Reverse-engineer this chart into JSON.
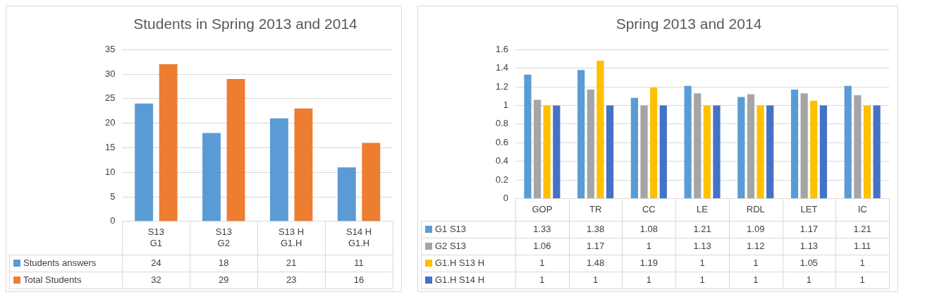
{
  "chart_data": [
    {
      "type": "bar",
      "title": "Students in Spring 2013 and 2014",
      "categories": [
        "S13\nG1",
        "S13\nG2",
        "S13 H\nG1.H",
        "S14 H\nG1.H"
      ],
      "series": [
        {
          "name": "Students answers",
          "color": "#5b9bd5",
          "values": [
            24,
            18,
            21,
            11
          ]
        },
        {
          "name": "Total Students",
          "color": "#ed7d31",
          "values": [
            32,
            29,
            23,
            16
          ]
        }
      ],
      "ylim": [
        0,
        35
      ],
      "yticks": [
        0,
        5,
        10,
        15,
        20,
        25,
        30,
        35
      ],
      "grid": "y",
      "legend": "bottom left",
      "data_labels": true
    },
    {
      "type": "bar",
      "title": "Spring 2013 and 2014",
      "categories": [
        "GOP",
        "TR",
        "CC",
        "LE",
        "RDL",
        "LET",
        "IC"
      ],
      "series": [
        {
          "name": "G1 S13",
          "color": "#5b9bd5",
          "values": [
            1.33,
            1.38,
            1.08,
            1.21,
            1.09,
            1.17,
            1.21
          ]
        },
        {
          "name": "G2 S13",
          "color": "#a5a5a5",
          "values": [
            1.06,
            1.17,
            1,
            1.13,
            1.12,
            1.13,
            1.11
          ]
        },
        {
          "name": "G1.H S13 H",
          "color": "#ffc000",
          "values": [
            1,
            1.48,
            1.19,
            1,
            1,
            1.05,
            1
          ]
        },
        {
          "name": "G1.H S14 H",
          "color": "#4472c4",
          "values": [
            1,
            1,
            1,
            1,
            1,
            1,
            1
          ]
        }
      ],
      "ylim": [
        0,
        1.6
      ],
      "yticks": [
        0,
        0.2,
        0.4,
        0.6,
        0.8,
        1,
        1.2,
        1.4,
        1.6
      ],
      "grid": "y",
      "legend": "bottom left",
      "data_labels": true
    }
  ]
}
